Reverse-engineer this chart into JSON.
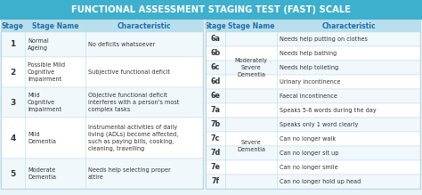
{
  "title": "FUNCTIONAL ASSESSMENT STAGING TEST (FAST) SCALE",
  "title_bg": "#3db0ce",
  "title_color": "#ffffff",
  "header_bg": "#b8dfec",
  "header_color": "#2070a8",
  "row_bg_even": "#f0f8fc",
  "row_bg_odd": "#ffffff",
  "text_color": "#333333",
  "border_color": "#c0d8e4",
  "fig_bg": "#e8f4f8",
  "left_rows": [
    {
      "stage": "1",
      "name": "Normal\nAgeing",
      "char": "No deficits whatsoever"
    },
    {
      "stage": "2",
      "name": "Possible Mild\nCognitive\nImpairment",
      "char": "Subjective functional deficit"
    },
    {
      "stage": "3",
      "name": "Mild\nCognitive\nImpairment",
      "char": "Objective functional deficit\ninterferes with a person's most\ncomplex tasks"
    },
    {
      "stage": "4",
      "name": "Mild\nDementia",
      "char": "Instrumental activities of daily\nliving (ADLs) become affected,\nsuch as paying bills, cooking,\ncleaning, travelling"
    },
    {
      "stage": "5",
      "name": "Moderate\nDementia",
      "char": "Needs help selecting proper\nattire"
    }
  ],
  "right_rows": [
    {
      "stage": "6a",
      "char": "Needs help putting on clothes"
    },
    {
      "stage": "6b",
      "char": "Needs help bathing"
    },
    {
      "stage": "6c",
      "char": "Needs help toileting"
    },
    {
      "stage": "6d",
      "char": "Urinary incontinence"
    },
    {
      "stage": "6e",
      "char": "Faecal incontinence"
    },
    {
      "stage": "7a",
      "char": "Speaks 5-6 words during the day"
    },
    {
      "stage": "7b",
      "char": "Speaks only 1 word clearly"
    },
    {
      "stage": "7c",
      "char": "Can no longer walk"
    },
    {
      "stage": "7d",
      "char": "Can no longer sit up"
    },
    {
      "stage": "7e",
      "char": "Can no longer smile"
    },
    {
      "stage": "7f",
      "char": "Can no longer hold up head"
    }
  ],
  "group1_name": "Moderately\nSevere\nDementia",
  "group1_rows": [
    0,
    4
  ],
  "group2_name": "Severe\nDementia",
  "group2_rows": [
    5,
    10
  ]
}
